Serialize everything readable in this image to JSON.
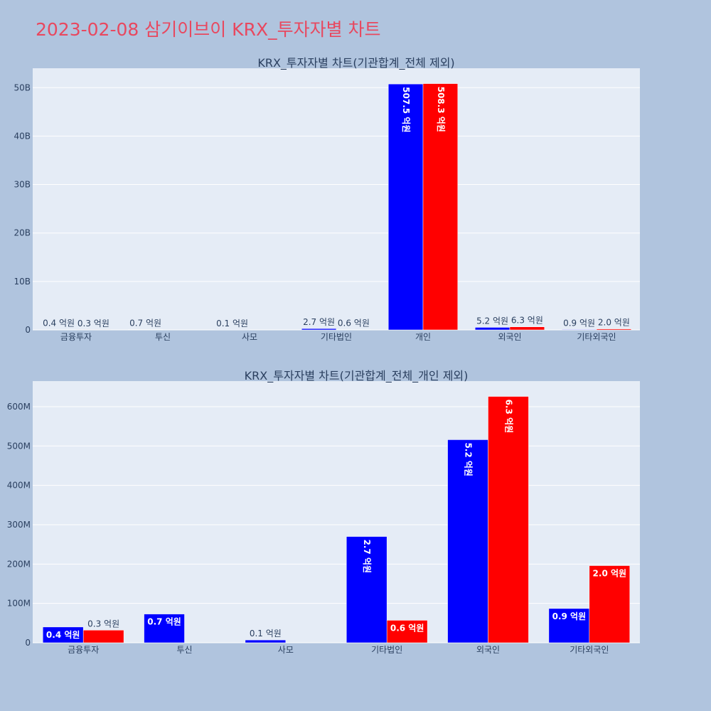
{
  "page": {
    "title": "2023-02-08 삼기이브이 KRX_투자자별 차트",
    "background": "#b0c4de",
    "title_color": "#e8485f"
  },
  "colors": {
    "series1": "#0000ff",
    "series2": "#ff0000",
    "plot_bg": "#e5ecf6",
    "grid": "#ffffff"
  },
  "chart_data": [
    {
      "type": "bar",
      "title": "KRX_투자자별 차트(기관합계_전체 제외)",
      "categories": [
        "금융투자",
        "투신",
        "사모",
        "기타법인",
        "개인",
        "외국인",
        "기타외국인"
      ],
      "ylim": [
        0,
        54000000000
      ],
      "yticks": [
        0,
        10000000000,
        20000000000,
        30000000000,
        40000000000,
        50000000000
      ],
      "ytick_labels": [
        "0",
        "10B",
        "20B",
        "30B",
        "40B",
        "50B"
      ],
      "grid": true,
      "series": [
        {
          "values": [
            40000000,
            70000000,
            10000000,
            270000000,
            50750000000,
            520000000,
            90000000
          ],
          "labels": [
            "0.4 억원",
            "0.7 억원",
            "0.1 억원",
            "2.7 억원",
            "507.5 억원",
            "5.2 억원",
            "0.9 억원"
          ]
        },
        {
          "values": [
            30000000,
            0,
            0,
            60000000,
            50830000000,
            630000000,
            200000000
          ],
          "labels": [
            "0.3 억원",
            "",
            "",
            "0.6 억원",
            "508.3 억원",
            "6.3 억원",
            "2.0 억원"
          ]
        }
      ]
    },
    {
      "type": "bar",
      "title": "KRX_투자자별 차트(기관합계_전체_개인 제외)",
      "categories": [
        "금융투자",
        "투신",
        "사모",
        "기타법인",
        "외국인",
        "기타외국인"
      ],
      "ylim": [
        0,
        665000000
      ],
      "yticks": [
        0,
        100000000,
        200000000,
        300000000,
        400000000,
        500000000,
        600000000
      ],
      "ytick_labels": [
        "0",
        "100M",
        "200M",
        "300M",
        "400M",
        "500M",
        "600M"
      ],
      "grid": true,
      "series": [
        {
          "values": [
            40000000,
            73000000,
            7000000,
            270000000,
            516000000,
            87000000
          ],
          "labels": [
            "0.4 억원",
            "0.7 억원",
            "0.1 억원",
            "2.7 억원",
            "5.2 억원",
            "0.9 억원"
          ]
        },
        {
          "values": [
            32000000,
            0,
            0,
            57000000,
            626000000,
            196000000
          ],
          "labels": [
            "0.3 억원",
            "",
            "",
            "0.6 억원",
            "6.3 억원",
            "2.0 억원"
          ]
        }
      ]
    }
  ]
}
